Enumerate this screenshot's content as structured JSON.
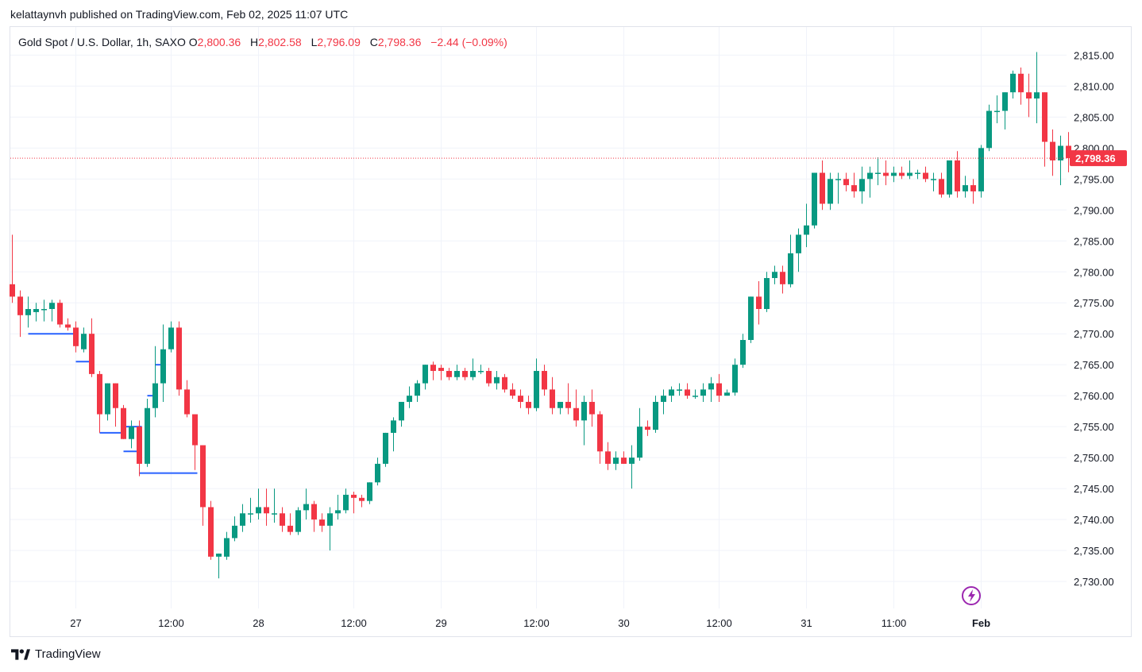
{
  "header": {
    "author": "kelattaynvh",
    "published_text": "published on TradingView.com, Feb 02, 2025 11:07 UTC"
  },
  "legend": {
    "symbol": "Gold Spot / U.S. Dollar, 1h, SAXO",
    "open_label": "O",
    "open": "2,800.36",
    "high_label": "H",
    "high": "2,802.58",
    "low_label": "L",
    "low": "2,796.09",
    "close_label": "C",
    "close": "2,798.36",
    "change": "−2.44 (−0.09%)"
  },
  "footer": {
    "brand": "TradingView",
    "brand_icon": "tradingview-logo-icon"
  },
  "colors": {
    "up": "#089981",
    "down": "#f23645",
    "level": "#2962ff",
    "grid": "#f0f3fa"
  },
  "chart_data": {
    "type": "candlestick",
    "title": "Gold Spot / U.S. Dollar, 1h, SAXO",
    "ylim": [
      2727.5,
      2820
    ],
    "y_ticks": [
      2730,
      2735,
      2740,
      2745,
      2750,
      2755,
      2760,
      2765,
      2770,
      2775,
      2780,
      2785,
      2790,
      2795,
      2800,
      2805,
      2810,
      2815
    ],
    "y_tick_labels": [
      "2,730.00",
      "2,735.00",
      "2,740.00",
      "2,745.00",
      "2,750.00",
      "2,755.00",
      "2,760.00",
      "2,765.00",
      "2,770.00",
      "2,775.00",
      "2,780.00",
      "2,785.00",
      "2,790.00",
      "2,795.00",
      "2,800.00",
      "2,805.00",
      "2,810.00",
      "2,815.00"
    ],
    "x_labels": [
      {
        "index": 8,
        "label": "27",
        "bold": false
      },
      {
        "index": 20,
        "label": "12:00",
        "bold": false
      },
      {
        "index": 31,
        "label": "28",
        "bold": false
      },
      {
        "index": 43,
        "label": "12:00",
        "bold": false
      },
      {
        "index": 54,
        "label": "29",
        "bold": false
      },
      {
        "index": 66,
        "label": "12:00",
        "bold": false
      },
      {
        "index": 77,
        "label": "30",
        "bold": false
      },
      {
        "index": 89,
        "label": "12:00",
        "bold": false
      },
      {
        "index": 100,
        "label": "31",
        "bold": false
      },
      {
        "index": 111,
        "label": "11:00",
        "bold": false
      },
      {
        "index": 122,
        "label": "Feb",
        "bold": true
      }
    ],
    "last_price": 2798.36,
    "last_price_label": "2,798.36",
    "ohlc": [
      [
        2778,
        2786,
        2775,
        2776
      ],
      [
        2776,
        2777,
        2769.5,
        2773
      ],
      [
        2773,
        2776,
        2771,
        2774
      ],
      [
        2773.5,
        2775,
        2772,
        2774
      ],
      [
        2774,
        2775.5,
        2772,
        2774
      ],
      [
        2774,
        2775.5,
        2772,
        2775
      ],
      [
        2775,
        2775.5,
        2771,
        2771.5
      ],
      [
        2771.5,
        2772.5,
        2770.5,
        2771
      ],
      [
        2771,
        2772,
        2767,
        2768
      ],
      [
        2767.5,
        2771,
        2767,
        2770
      ],
      [
        2770,
        2772.5,
        2763,
        2763.5
      ],
      [
        2763.5,
        2764,
        2754,
        2757
      ],
      [
        2757,
        2762,
        2756,
        2762
      ],
      [
        2762,
        2762,
        2755,
        2758
      ],
      [
        2758,
        2758.5,
        2753,
        2753
      ],
      [
        2753,
        2756,
        2751.5,
        2755
      ],
      [
        2755,
        2756,
        2747,
        2749
      ],
      [
        2749,
        2759.5,
        2748.5,
        2758
      ],
      [
        2758,
        2768,
        2756.5,
        2762
      ],
      [
        2762,
        2771.5,
        2759,
        2767.5
      ],
      [
        2767.5,
        2772,
        2767,
        2771
      ],
      [
        2771,
        2772,
        2760,
        2761
      ],
      [
        2761,
        2762.5,
        2756.5,
        2757
      ],
      [
        2757,
        2757,
        2748,
        2752
      ],
      [
        2752,
        2752,
        2739,
        2742
      ],
      [
        2742,
        2743,
        2733.5,
        2734
      ],
      [
        2734,
        2734.5,
        2730.5,
        2734.5
      ],
      [
        2734,
        2738,
        2733.5,
        2737
      ],
      [
        2737,
        2740.5,
        2736.5,
        2739
      ],
      [
        2739,
        2742.5,
        2738,
        2741
      ],
      [
        2741,
        2743.5,
        2739.5,
        2741
      ],
      [
        2741,
        2745,
        2740,
        2742
      ],
      [
        2742,
        2745,
        2739,
        2741
      ],
      [
        2741,
        2745,
        2739.5,
        2741
      ],
      [
        2741,
        2742,
        2738,
        2739
      ],
      [
        2739,
        2741,
        2737.5,
        2738
      ],
      [
        2738,
        2742,
        2737.5,
        2741.5
      ],
      [
        2741.5,
        2745,
        2740,
        2742.5
      ],
      [
        2742.5,
        2743,
        2738,
        2740
      ],
      [
        2740,
        2741,
        2738,
        2739
      ],
      [
        2739,
        2742,
        2735,
        2741
      ],
      [
        2741,
        2744,
        2740,
        2741.5
      ],
      [
        2741.5,
        2745,
        2741,
        2744
      ],
      [
        2744,
        2744.5,
        2741,
        2743.5
      ],
      [
        2743.5,
        2744,
        2742,
        2743
      ],
      [
        2743,
        2746,
        2742.5,
        2746
      ],
      [
        2746,
        2750,
        2745.5,
        2749
      ],
      [
        2749,
        2754,
        2748.5,
        2754
      ],
      [
        2754,
        2756.5,
        2751,
        2756
      ],
      [
        2756,
        2759,
        2755,
        2759
      ],
      [
        2759,
        2761.5,
        2758,
        2760
      ],
      [
        2760,
        2762.5,
        2759,
        2762
      ],
      [
        2762,
        2765,
        2761,
        2765
      ],
      [
        2765,
        2765.5,
        2762.5,
        2764
      ],
      [
        2764.5,
        2765,
        2762.5,
        2764
      ],
      [
        2764,
        2764.5,
        2762.5,
        2763
      ],
      [
        2763,
        2765,
        2762.5,
        2764
      ],
      [
        2764,
        2764.5,
        2762.5,
        2763
      ],
      [
        2763,
        2766,
        2762.5,
        2764
      ],
      [
        2764,
        2765,
        2763.5,
        2764
      ],
      [
        2764,
        2764.5,
        2761.5,
        2762
      ],
      [
        2762,
        2764,
        2761,
        2763
      ],
      [
        2763,
        2763.5,
        2760.5,
        2761
      ],
      [
        2761,
        2762,
        2759.5,
        2760
      ],
      [
        2760,
        2761,
        2758,
        2759
      ],
      [
        2759,
        2760,
        2757,
        2758
      ],
      [
        2758,
        2766,
        2757.5,
        2764
      ],
      [
        2764,
        2765,
        2760,
        2761
      ],
      [
        2761,
        2763,
        2757,
        2758
      ],
      [
        2758,
        2759,
        2757,
        2759
      ],
      [
        2759,
        2762,
        2757,
        2758
      ],
      [
        2758,
        2761,
        2755,
        2756
      ],
      [
        2756,
        2760,
        2752,
        2759
      ],
      [
        2759,
        2761,
        2755,
        2757
      ],
      [
        2757,
        2757.5,
        2749,
        2751
      ],
      [
        2751,
        2752.5,
        2748,
        2749
      ],
      [
        2749,
        2751,
        2748,
        2750
      ],
      [
        2750,
        2751,
        2749,
        2749
      ],
      [
        2749,
        2752,
        2745,
        2750
      ],
      [
        2750,
        2758,
        2749.5,
        2755
      ],
      [
        2755,
        2756,
        2753.5,
        2754.5
      ],
      [
        2754.5,
        2760,
        2754,
        2759
      ],
      [
        2759,
        2761,
        2757,
        2760
      ],
      [
        2760,
        2761.5,
        2759,
        2761
      ],
      [
        2761,
        2762,
        2760,
        2761
      ],
      [
        2761,
        2762,
        2759.5,
        2760
      ],
      [
        2760,
        2761,
        2759.5,
        2760
      ],
      [
        2760,
        2762,
        2759,
        2761
      ],
      [
        2761,
        2763,
        2759,
        2762
      ],
      [
        2762,
        2763.5,
        2759,
        2760
      ],
      [
        2760,
        2761,
        2760,
        2760.5
      ],
      [
        2760.5,
        2766,
        2760,
        2765
      ],
      [
        2765,
        2770,
        2764.5,
        2769
      ],
      [
        2769,
        2776,
        2768.5,
        2776
      ],
      [
        2776,
        2778.5,
        2771.5,
        2774
      ],
      [
        2774,
        2780,
        2773.5,
        2779
      ],
      [
        2779,
        2781,
        2778,
        2780
      ],
      [
        2780,
        2781,
        2776.5,
        2778
      ],
      [
        2778,
        2786,
        2777.5,
        2783
      ],
      [
        2783,
        2787,
        2780,
        2786
      ],
      [
        2786,
        2791,
        2784,
        2787.5
      ],
      [
        2787.5,
        2796,
        2787,
        2796
      ],
      [
        2796,
        2798,
        2790,
        2791
      ],
      [
        2791,
        2796,
        2790,
        2795
      ],
      [
        2795,
        2796,
        2791,
        2795
      ],
      [
        2795,
        2796,
        2793,
        2794
      ],
      [
        2794,
        2796,
        2792,
        2793
      ],
      [
        2793,
        2797,
        2791,
        2795
      ],
      [
        2795,
        2797,
        2792,
        2796
      ],
      [
        2796,
        2798.5,
        2794,
        2796
      ],
      [
        2796,
        2798,
        2794,
        2795.5
      ],
      [
        2795.5,
        2797,
        2794.5,
        2796
      ],
      [
        2796,
        2797,
        2795,
        2795.5
      ],
      [
        2795.5,
        2798,
        2795,
        2796
      ],
      [
        2796,
        2796.5,
        2795,
        2796
      ],
      [
        2796,
        2797,
        2794.5,
        2795
      ],
      [
        2795,
        2796,
        2793,
        2795
      ],
      [
        2795,
        2796,
        2792,
        2792.5
      ],
      [
        2792.5,
        2798,
        2792,
        2798
      ],
      [
        2798,
        2799.5,
        2792,
        2793
      ],
      [
        2793,
        2795.5,
        2792,
        2794
      ],
      [
        2794,
        2795,
        2791,
        2793
      ],
      [
        2793,
        2800.5,
        2792,
        2800
      ],
      [
        2800,
        2807,
        2799.5,
        2806
      ],
      [
        2806,
        2808.5,
        2804,
        2806
      ],
      [
        2806,
        2809,
        2803,
        2809
      ],
      [
        2809,
        2812.5,
        2808,
        2812
      ],
      [
        2812,
        2813,
        2807,
        2809
      ]
    ],
    "ohlc_tail": [
      [
        2809,
        2812,
        2805,
        2808
      ],
      [
        2808,
        2815.5,
        2804,
        2809
      ],
      [
        2809,
        2809,
        2797,
        2801
      ],
      [
        2801,
        2803,
        2795.5,
        2798
      ],
      [
        2798,
        2802,
        2794,
        2800.36
      ],
      [
        2800.36,
        2802.58,
        2796.09,
        2798.36
      ]
    ],
    "level_lines": [
      {
        "price": 2770,
        "from": 2,
        "to": 8
      },
      {
        "price": 2765.5,
        "from": 8,
        "to": 10
      },
      {
        "price": 2754,
        "from": 11,
        "to": 14
      },
      {
        "price": 2755,
        "from": 14,
        "to": 16
      },
      {
        "price": 2751,
        "from": 14,
        "to": 16
      },
      {
        "price": 2765,
        "from": 18,
        "to": 19
      },
      {
        "price": 2760,
        "from": 17,
        "to": 18
      },
      {
        "price": 2747.5,
        "from": 16,
        "to": 23
      }
    ]
  }
}
